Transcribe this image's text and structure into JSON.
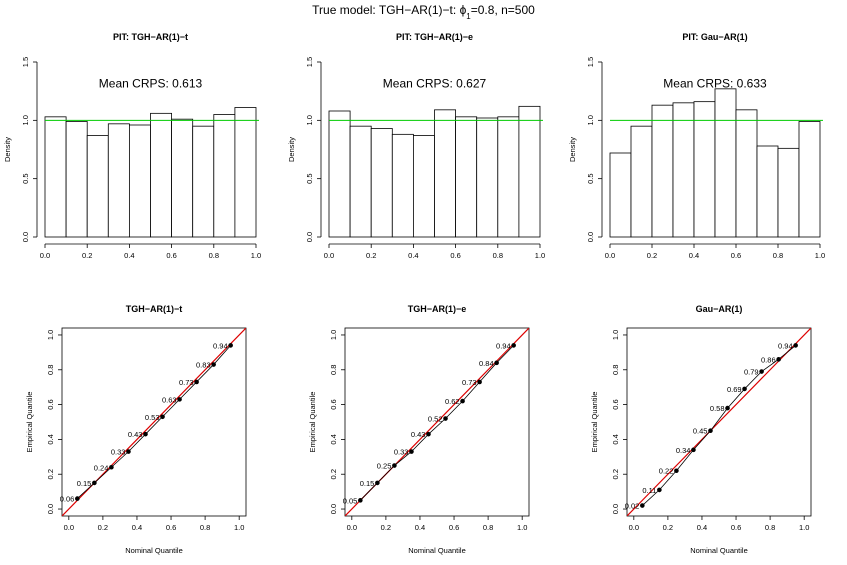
{
  "suptitle": {
    "prefix": "True model: TGH−AR(1)−t: ",
    "phi": "ϕ",
    "sub": "1",
    "suffix": "=0.8, n=500"
  },
  "colors": {
    "reference_hline": "#00cc00",
    "diagonal": "#dd0000",
    "bar_fill": "#ffffff",
    "stroke": "#000000"
  },
  "chart_data": [
    {
      "type": "bar",
      "title": "PIT: TGH−AR(1)−t",
      "annotation": "Mean CRPS: 0.613",
      "ylabel": "Density",
      "xlabel": "",
      "xlim": [
        0,
        1
      ],
      "ylim": [
        0,
        1.5
      ],
      "xticks": [
        "0.0",
        "0.2",
        "0.4",
        "0.6",
        "0.8",
        "1.0"
      ],
      "yticks": [
        "0.0",
        "0.5",
        "1.0",
        "1.5"
      ],
      "bin_edges": [
        0,
        0.1,
        0.2,
        0.3,
        0.4,
        0.5,
        0.6,
        0.7,
        0.8,
        0.9,
        1.0
      ],
      "values": [
        1.03,
        0.99,
        0.87,
        0.97,
        0.96,
        1.06,
        1.01,
        0.95,
        1.05,
        1.11
      ],
      "reference_line": 1.0
    },
    {
      "type": "bar",
      "title": "PIT: TGH−AR(1)−e",
      "annotation": "Mean CRPS: 0.627",
      "ylabel": "Density",
      "xlabel": "",
      "xlim": [
        0,
        1
      ],
      "ylim": [
        0,
        1.5
      ],
      "xticks": [
        "0.0",
        "0.2",
        "0.4",
        "0.6",
        "0.8",
        "1.0"
      ],
      "yticks": [
        "0.0",
        "0.5",
        "1.0",
        "1.5"
      ],
      "bin_edges": [
        0,
        0.1,
        0.2,
        0.3,
        0.4,
        0.5,
        0.6,
        0.7,
        0.8,
        0.9,
        1.0
      ],
      "values": [
        1.08,
        0.95,
        0.93,
        0.88,
        0.87,
        1.09,
        1.03,
        1.02,
        1.03,
        1.12
      ],
      "reference_line": 1.0
    },
    {
      "type": "bar",
      "title": "PIT: Gau−AR(1)",
      "annotation": "Mean CRPS: 0.633",
      "ylabel": "Density",
      "xlabel": "",
      "xlim": [
        0,
        1
      ],
      "ylim": [
        0,
        1.5
      ],
      "xticks": [
        "0.0",
        "0.2",
        "0.4",
        "0.6",
        "0.8",
        "1.0"
      ],
      "yticks": [
        "0.0",
        "0.5",
        "1.0",
        "1.5"
      ],
      "bin_edges": [
        0,
        0.1,
        0.2,
        0.3,
        0.4,
        0.5,
        0.6,
        0.7,
        0.8,
        0.9,
        1.0
      ],
      "values": [
        0.72,
        0.95,
        1.13,
        1.15,
        1.16,
        1.27,
        1.09,
        0.78,
        0.76,
        0.99
      ],
      "reference_line": 1.0
    },
    {
      "type": "scatter",
      "title": "TGH−AR(1)−t",
      "xlabel": "Nominal Quantile",
      "ylabel": "Empirical Quantile",
      "xlim": [
        0,
        1
      ],
      "ylim": [
        0,
        1
      ],
      "xticks": [
        "0.0",
        "0.2",
        "0.4",
        "0.6",
        "0.8",
        "1.0"
      ],
      "yticks": [
        "0.0",
        "0.2",
        "0.4",
        "0.6",
        "0.8",
        "1.0"
      ],
      "x": [
        0.05,
        0.15,
        0.25,
        0.35,
        0.45,
        0.55,
        0.65,
        0.75,
        0.85,
        0.95
      ],
      "y": [
        0.06,
        0.15,
        0.24,
        0.33,
        0.43,
        0.53,
        0.63,
        0.73,
        0.83,
        0.94
      ],
      "labels": [
        "0.06",
        "0.15",
        "0.24",
        "0.33",
        "0.43",
        "0.53",
        "0.63",
        "0.73",
        "0.83",
        "0.94"
      ],
      "reference_line": "y=x"
    },
    {
      "type": "scatter",
      "title": "TGH−AR(1)−e",
      "xlabel": "Nominal Quantile",
      "ylabel": "Empirical Quantile",
      "xlim": [
        0,
        1
      ],
      "ylim": [
        0,
        1
      ],
      "xticks": [
        "0.0",
        "0.2",
        "0.4",
        "0.6",
        "0.8",
        "1.0"
      ],
      "yticks": [
        "0.0",
        "0.2",
        "0.4",
        "0.6",
        "0.8",
        "1.0"
      ],
      "x": [
        0.05,
        0.15,
        0.25,
        0.35,
        0.45,
        0.55,
        0.65,
        0.75,
        0.85,
        0.95
      ],
      "y": [
        0.05,
        0.15,
        0.25,
        0.33,
        0.43,
        0.52,
        0.62,
        0.73,
        0.84,
        0.94
      ],
      "labels": [
        "0.05",
        "0.15",
        "0.25",
        "0.33",
        "0.43",
        "0.52",
        "0.62",
        "0.73",
        "0.84",
        "0.94"
      ],
      "reference_line": "y=x"
    },
    {
      "type": "scatter",
      "title": "Gau−AR(1)",
      "xlabel": "Nominal Quantile",
      "ylabel": "Empirical Quantile",
      "xlim": [
        0,
        1
      ],
      "ylim": [
        0,
        1
      ],
      "xticks": [
        "0.0",
        "0.2",
        "0.4",
        "0.6",
        "0.8",
        "1.0"
      ],
      "yticks": [
        "0.0",
        "0.2",
        "0.4",
        "0.6",
        "0.8",
        "1.0"
      ],
      "x": [
        0.05,
        0.15,
        0.25,
        0.35,
        0.45,
        0.55,
        0.65,
        0.75,
        0.85,
        0.95
      ],
      "y": [
        0.02,
        0.11,
        0.22,
        0.34,
        0.45,
        0.58,
        0.69,
        0.79,
        0.86,
        0.94
      ],
      "labels": [
        "0.02",
        "0.11",
        "0.22",
        "0.34",
        "0.45",
        "0.58",
        "0.69",
        "0.79",
        "0.86",
        "0.94"
      ],
      "reference_line": "y=x"
    }
  ]
}
